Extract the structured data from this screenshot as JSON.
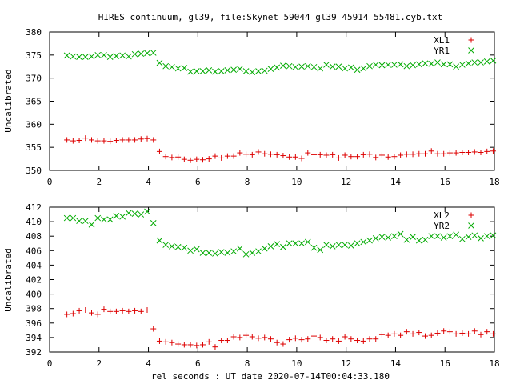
{
  "chart_title": "HIRES continuum, gl39, file:Skynet_59044_gl39_45914_55481.cyb.txt",
  "x_axis_label": "rel seconds : UT date 2020-07-14T00:04:33.180",
  "chart_data": [
    {
      "type": "scatter",
      "ylabel": "Uncalibrated",
      "xlim": [
        0,
        18
      ],
      "ylim": [
        350,
        380
      ],
      "xticks": [
        0,
        2,
        4,
        6,
        8,
        10,
        12,
        14,
        16,
        18
      ],
      "yticks": [
        350,
        355,
        360,
        365,
        370,
        375,
        380
      ],
      "grid": false,
      "legend_position": "top-right",
      "x": [
        0.7,
        0.95,
        1.2,
        1.45,
        1.7,
        1.95,
        2.2,
        2.45,
        2.7,
        2.95,
        3.2,
        3.45,
        3.7,
        3.95,
        4.2,
        4.45,
        4.7,
        4.95,
        5.2,
        5.45,
        5.7,
        5.95,
        6.2,
        6.45,
        6.7,
        6.95,
        7.2,
        7.45,
        7.7,
        7.95,
        8.2,
        8.45,
        8.7,
        8.95,
        9.2,
        9.45,
        9.7,
        9.95,
        10.2,
        10.45,
        10.7,
        10.95,
        11.2,
        11.45,
        11.7,
        11.95,
        12.2,
        12.45,
        12.7,
        12.95,
        13.2,
        13.45,
        13.7,
        13.95,
        14.2,
        14.45,
        14.7,
        14.95,
        15.2,
        15.45,
        15.7,
        15.95,
        16.2,
        16.45,
        16.7,
        16.95,
        17.2,
        17.45,
        17.7,
        17.95
      ],
      "series": [
        {
          "name": "XL1",
          "color": "#dd0000",
          "marker": "plus",
          "values": [
            356.6,
            356.4,
            356.5,
            357.0,
            356.6,
            356.4,
            356.4,
            356.3,
            356.5,
            356.6,
            356.6,
            356.6,
            356.8,
            356.9,
            356.6,
            354.1,
            353.0,
            352.8,
            352.9,
            352.4,
            352.2,
            352.4,
            352.3,
            352.5,
            353.1,
            352.7,
            353.1,
            353.1,
            353.8,
            353.5,
            353.4,
            354.0,
            353.6,
            353.5,
            353.4,
            353.2,
            352.9,
            352.9,
            352.6,
            353.8,
            353.4,
            353.4,
            353.3,
            353.4,
            352.7,
            353.3,
            353.0,
            353.0,
            353.4,
            353.5,
            352.8,
            353.3,
            352.9,
            353.0,
            353.3,
            353.5,
            353.5,
            353.6,
            353.6,
            354.2,
            353.6,
            353.6,
            353.8,
            353.8,
            353.9,
            353.9,
            354.0,
            353.9,
            354.1,
            354.2
          ]
        },
        {
          "name": "YR1",
          "color": "#00aa00",
          "marker": "cross",
          "values": [
            374.9,
            374.7,
            374.6,
            374.6,
            374.7,
            375.0,
            375.0,
            374.6,
            374.8,
            374.9,
            374.7,
            375.2,
            375.3,
            375.4,
            375.5,
            373.3,
            372.6,
            372.4,
            372.1,
            372.2,
            371.4,
            371.5,
            371.5,
            371.7,
            371.4,
            371.5,
            371.7,
            371.8,
            372.0,
            371.5,
            371.3,
            371.5,
            371.6,
            372.0,
            372.3,
            372.7,
            372.6,
            372.4,
            372.5,
            372.6,
            372.4,
            372.1,
            372.9,
            372.5,
            372.5,
            372.1,
            372.3,
            371.8,
            372.1,
            372.6,
            372.9,
            372.8,
            372.9,
            372.9,
            373.0,
            372.6,
            372.8,
            373.0,
            373.2,
            373.1,
            373.4,
            373.0,
            373.0,
            372.5,
            372.9,
            373.2,
            373.4,
            373.4,
            373.6,
            373.8
          ]
        }
      ]
    },
    {
      "type": "scatter",
      "ylabel": "Uncalibrated",
      "xlim": [
        0,
        18
      ],
      "ylim": [
        392,
        412
      ],
      "xticks": [
        0,
        2,
        4,
        6,
        8,
        10,
        12,
        14,
        16,
        18
      ],
      "yticks": [
        392,
        394,
        396,
        398,
        400,
        402,
        404,
        406,
        408,
        410,
        412
      ],
      "grid": false,
      "legend_position": "top-right",
      "x": [
        0.7,
        0.95,
        1.2,
        1.45,
        1.7,
        1.95,
        2.2,
        2.45,
        2.7,
        2.95,
        3.2,
        3.45,
        3.7,
        3.95,
        4.2,
        4.45,
        4.7,
        4.95,
        5.2,
        5.45,
        5.7,
        5.95,
        6.2,
        6.45,
        6.7,
        6.95,
        7.2,
        7.45,
        7.7,
        7.95,
        8.2,
        8.45,
        8.7,
        8.95,
        9.2,
        9.45,
        9.7,
        9.95,
        10.2,
        10.45,
        10.7,
        10.95,
        11.2,
        11.45,
        11.7,
        11.95,
        12.2,
        12.45,
        12.7,
        12.95,
        13.2,
        13.45,
        13.7,
        13.95,
        14.2,
        14.45,
        14.7,
        14.95,
        15.2,
        15.45,
        15.7,
        15.95,
        16.2,
        16.45,
        16.7,
        16.95,
        17.2,
        17.45,
        17.7,
        17.95
      ],
      "series": [
        {
          "name": "XL2",
          "color": "#dd0000",
          "marker": "plus",
          "values": [
            397.2,
            397.3,
            397.7,
            397.8,
            397.4,
            397.2,
            397.9,
            397.6,
            397.6,
            397.7,
            397.6,
            397.7,
            397.6,
            397.8,
            395.2,
            393.5,
            393.4,
            393.3,
            393.1,
            393.0,
            393.0,
            392.9,
            393.0,
            393.4,
            392.7,
            393.6,
            393.6,
            394.1,
            394.0,
            394.3,
            394.1,
            393.9,
            394.0,
            393.8,
            393.3,
            393.1,
            393.7,
            393.9,
            393.7,
            393.8,
            394.2,
            394.0,
            393.6,
            393.8,
            393.5,
            394.1,
            393.8,
            393.6,
            393.5,
            393.8,
            393.8,
            394.4,
            394.3,
            394.5,
            394.3,
            394.8,
            394.5,
            394.7,
            394.2,
            394.3,
            394.6,
            394.9,
            394.8,
            394.5,
            394.6,
            394.5,
            394.9,
            394.4,
            394.8,
            394.5
          ]
        },
        {
          "name": "YR2",
          "color": "#00aa00",
          "marker": "cross",
          "values": [
            410.5,
            410.5,
            410.1,
            410.1,
            409.6,
            410.5,
            410.3,
            410.3,
            410.8,
            410.7,
            411.2,
            411.1,
            411.0,
            411.4,
            409.8,
            407.4,
            406.8,
            406.6,
            406.5,
            406.4,
            406.0,
            406.2,
            405.7,
            405.7,
            405.6,
            405.8,
            405.7,
            405.9,
            406.3,
            405.5,
            405.7,
            405.9,
            406.3,
            406.6,
            406.9,
            406.5,
            407.0,
            407.0,
            407.0,
            407.2,
            406.4,
            406.1,
            406.8,
            406.6,
            406.8,
            406.8,
            406.7,
            407.0,
            407.2,
            407.4,
            407.7,
            407.9,
            407.8,
            408.0,
            408.3,
            407.5,
            407.9,
            407.4,
            407.5,
            408.0,
            408.0,
            407.8,
            408.0,
            408.2,
            407.6,
            407.9,
            408.1,
            407.7,
            408.0,
            408.1
          ]
        }
      ]
    }
  ]
}
